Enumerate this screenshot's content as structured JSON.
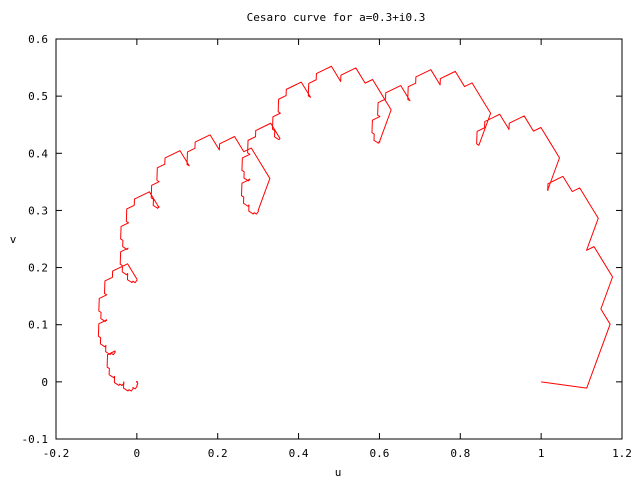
{
  "chart_data": {
    "type": "line",
    "title": "Cesaro curve for a=0.3+i0.3",
    "xlabel": "u",
    "ylabel": "v",
    "xlim": [
      -0.2,
      1.2
    ],
    "ylim": [
      -0.1,
      0.6
    ],
    "xticks": [
      "-0.2",
      "0",
      "0.2",
      "0.4",
      "0.6",
      "0.8",
      "1",
      "1.2"
    ],
    "yticks": [
      "-0.1",
      "0",
      "0.1",
      "0.2",
      "0.3",
      "0.4",
      "0.5",
      "0.6"
    ],
    "grid": false,
    "legend": "none",
    "line_color": "#ff0000",
    "parameter_a": {
      "re": 0.3,
      "im": 0.3
    },
    "recursion_depth": 8,
    "series": [
      {
        "start": [
          0.0,
          0.0
        ],
        "end": [
          1.0,
          0.0
        ],
        "mark_every_n_points": 48,
        "x": [],
        "y": []
      }
    ]
  }
}
